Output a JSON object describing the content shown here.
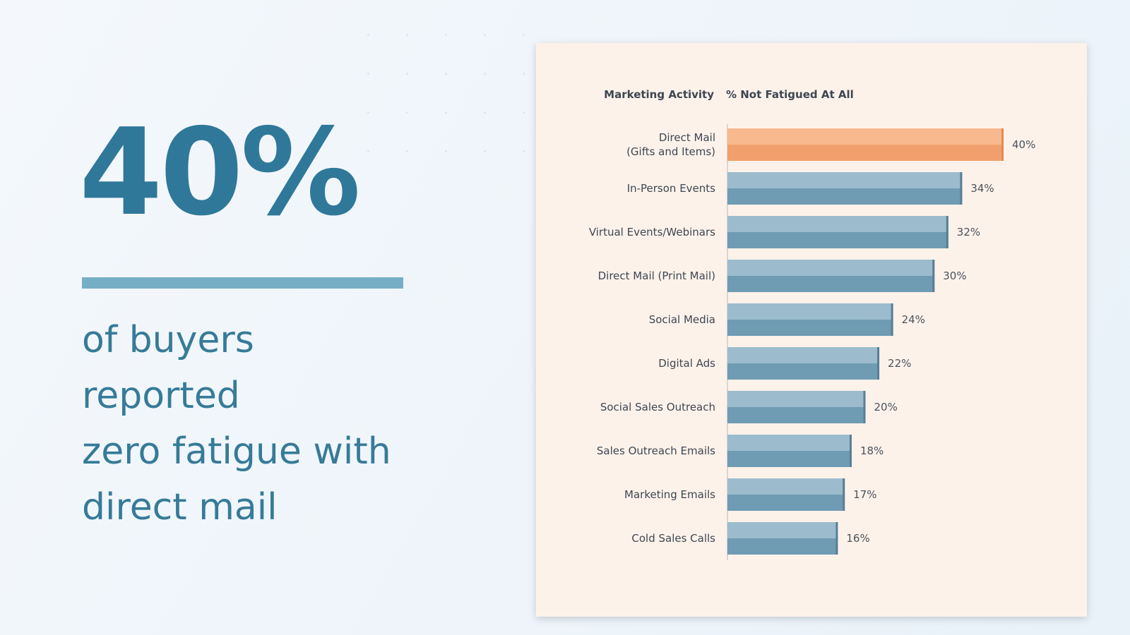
{
  "headline": {
    "stat": "40%",
    "caption_lines": [
      "of buyers",
      "reported",
      "zero fatigue with",
      "direct mail"
    ]
  },
  "colors": {
    "stat": "#2f7899",
    "bar_default": "#7ea6bc",
    "bar_highlight": "#f5a877",
    "card_background": "#fdf2ea"
  },
  "chart_data": {
    "type": "bar",
    "orientation": "horizontal",
    "header_category": "Marketing Activity",
    "header_value": "% Not Fatigued At All",
    "categories": [
      "Direct Mail (Gifts and Items)",
      "In-Person Events",
      "Virtual Events/Webinars",
      "Direct Mail (Print Mail)",
      "Social Media",
      "Digital Ads",
      "Social Sales Outreach",
      "Sales Outreach Emails",
      "Marketing Emails",
      "Cold Sales Calls"
    ],
    "category_lines": [
      [
        "Direct Mail",
        "(Gifts and Items)"
      ],
      [
        "In-Person Events"
      ],
      [
        "Virtual Events/Webinars"
      ],
      [
        "Direct Mail (Print Mail)"
      ],
      [
        "Social Media"
      ],
      [
        "Digital Ads"
      ],
      [
        "Social Sales Outreach"
      ],
      [
        "Sales Outreach Emails"
      ],
      [
        "Marketing Emails"
      ],
      [
        "Cold Sales Calls"
      ]
    ],
    "values": [
      40,
      34,
      32,
      30,
      24,
      22,
      20,
      18,
      17,
      16
    ],
    "value_labels": [
      "40%",
      "34%",
      "32%",
      "30%",
      "24%",
      "22%",
      "20%",
      "18%",
      "17%",
      "16%"
    ],
    "highlight_index": 0,
    "xlim": [
      0,
      43
    ],
    "grid": false,
    "legend": "none"
  }
}
